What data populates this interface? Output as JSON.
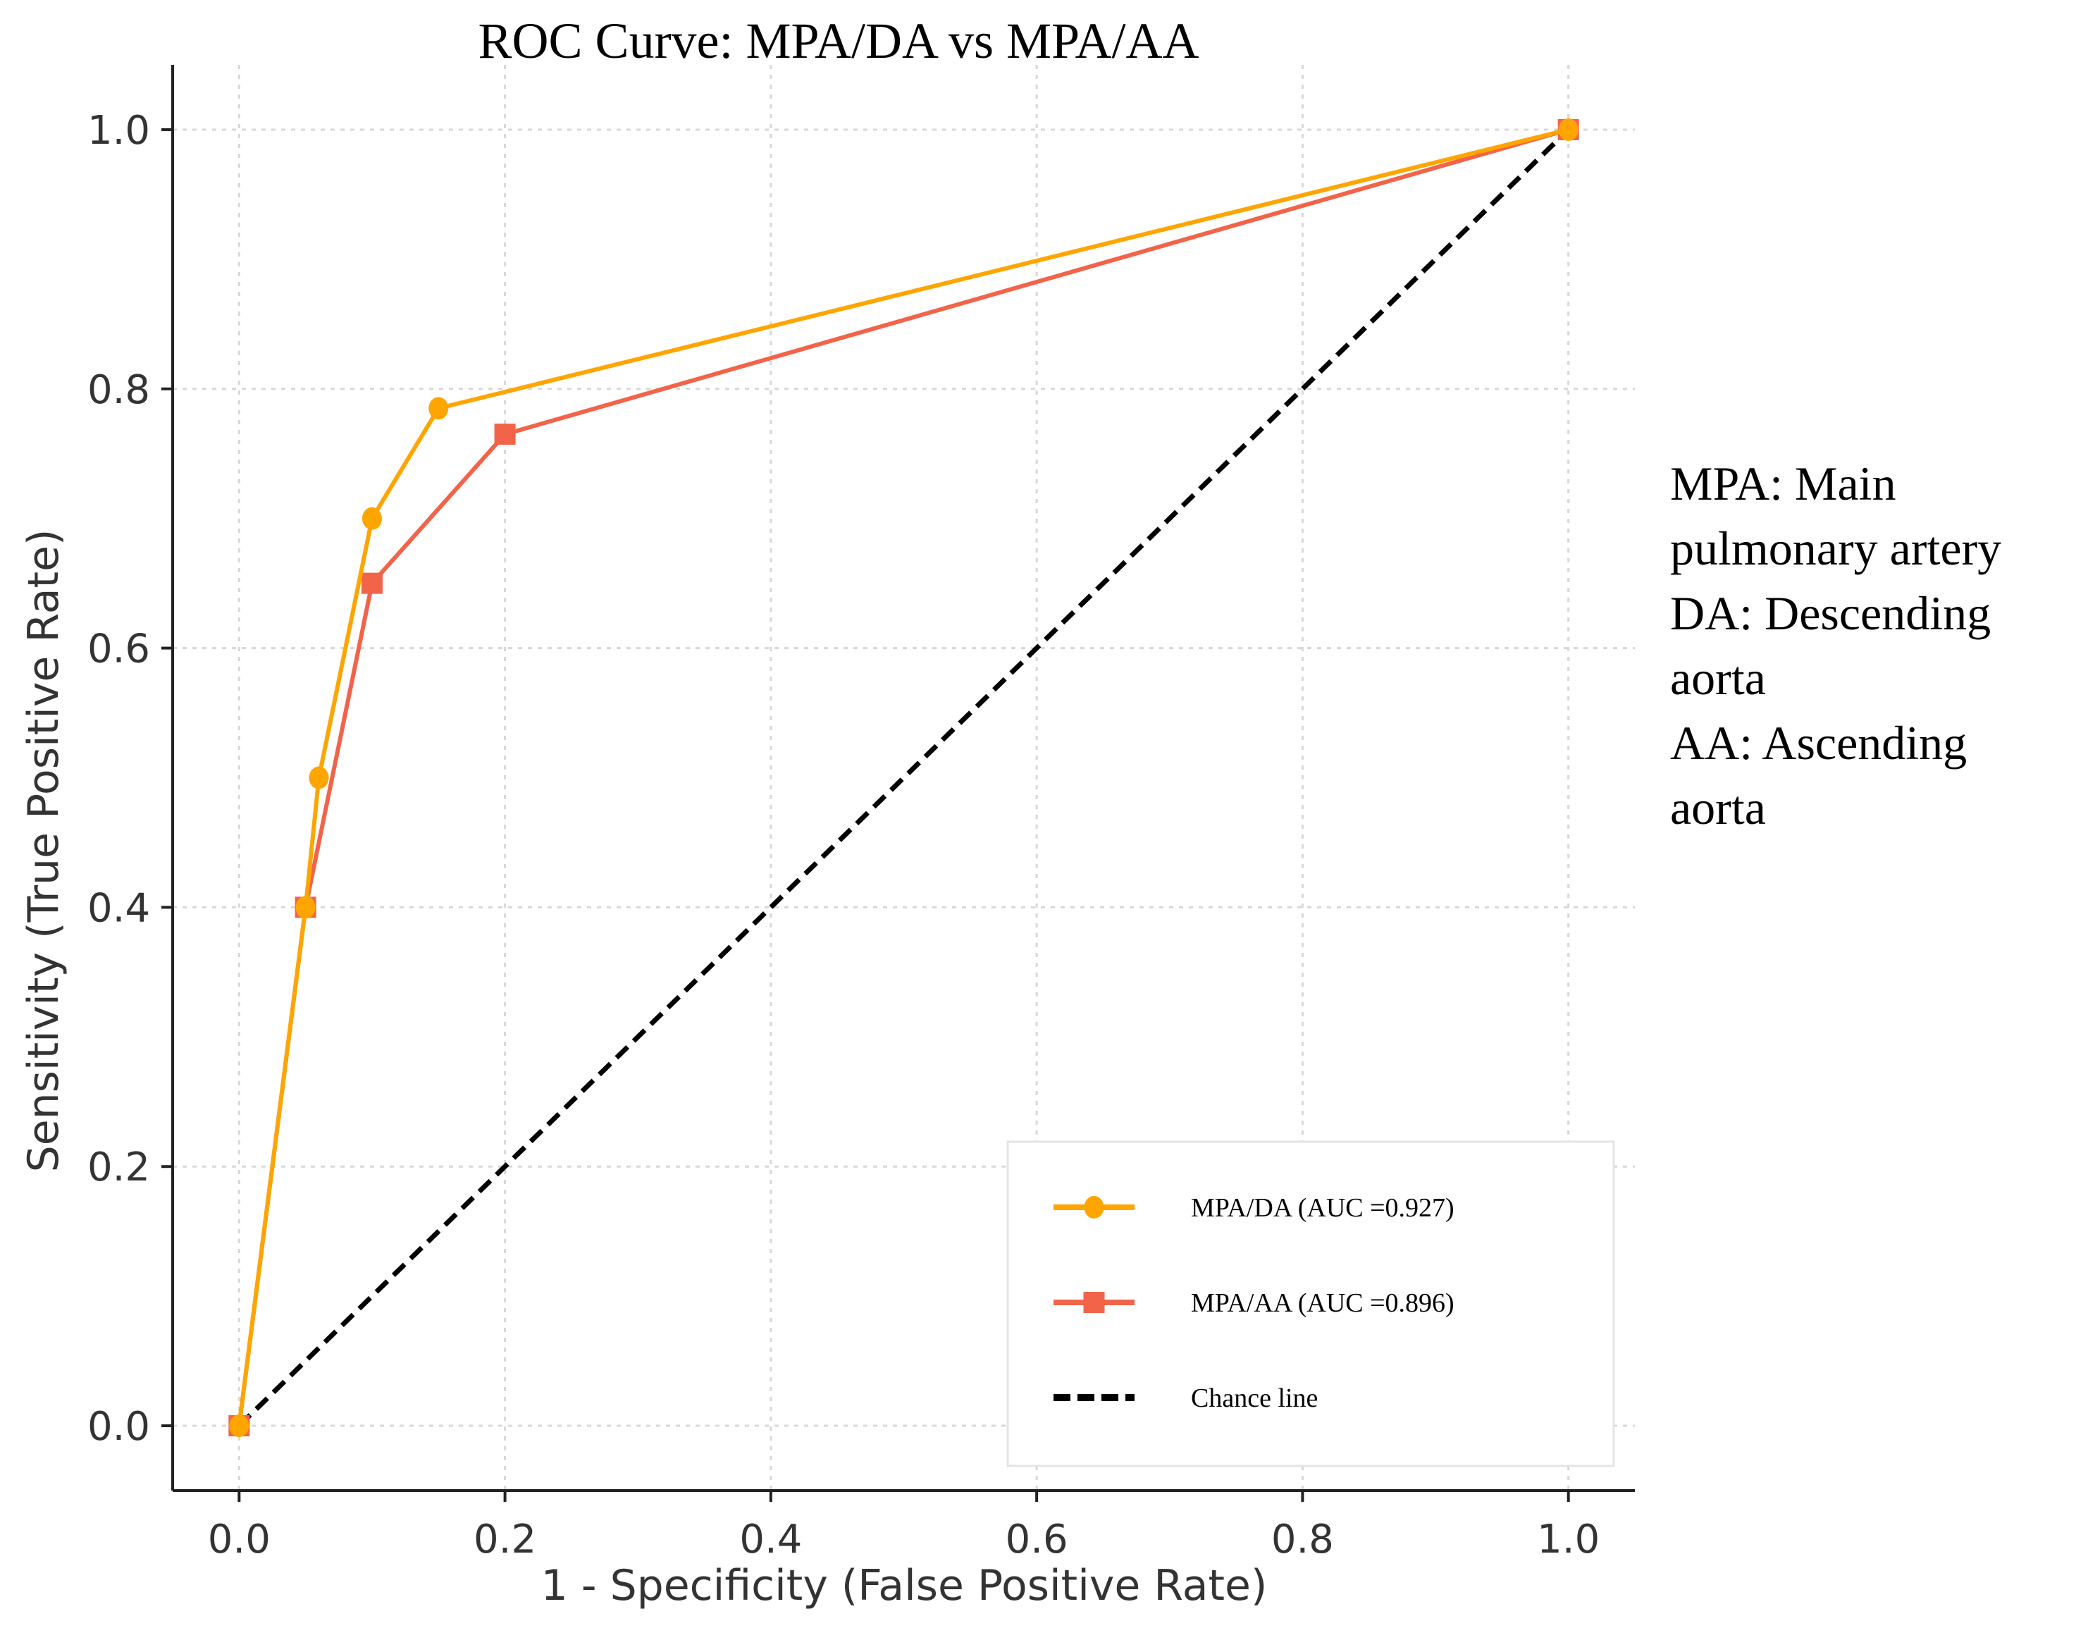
{
  "chart_data": {
    "type": "line",
    "title": "ROC Curve: MPA/DA vs MPA/AA",
    "xlabel": "1 - Specificity (False Positive Rate)",
    "ylabel": "Sensitivity (True Positive Rate)",
    "xlim": [
      -0.05,
      1.05
    ],
    "ylim": [
      -0.05,
      1.05
    ],
    "xticks": [
      "0.0",
      "0.2",
      "0.4",
      "0.6",
      "0.8",
      "1.0"
    ],
    "yticks": [
      "0.0",
      "0.2",
      "0.4",
      "0.6",
      "0.8",
      "1.0"
    ],
    "grid": true,
    "legend_position": "bottom-right",
    "series": [
      {
        "name": "MPA/DA (AUC =0.927)",
        "marker": "circle",
        "color": "#FFA500",
        "x": [
          0.0,
          0.05,
          0.06,
          0.1,
          0.15,
          1.0
        ],
        "y": [
          0.0,
          0.4,
          0.5,
          0.7,
          0.785,
          1.0
        ]
      },
      {
        "name": "MPA/AA (AUC =0.896)",
        "marker": "square",
        "color": "#F2644A",
        "x": [
          0.0,
          0.05,
          0.1,
          0.2,
          1.0
        ],
        "y": [
          0.0,
          0.4,
          0.65,
          0.765,
          1.0
        ]
      },
      {
        "name": "Chance line",
        "marker": "none",
        "style": "dashed",
        "color": "#000000",
        "x": [
          0.0,
          1.0
        ],
        "y": [
          0.0,
          1.0
        ]
      }
    ]
  },
  "notes": {
    "lines": [
      "MPA: Main",
      "pulmonary artery",
      "DA: Descending",
      "aorta",
      "AA: Ascending",
      "aorta"
    ]
  }
}
